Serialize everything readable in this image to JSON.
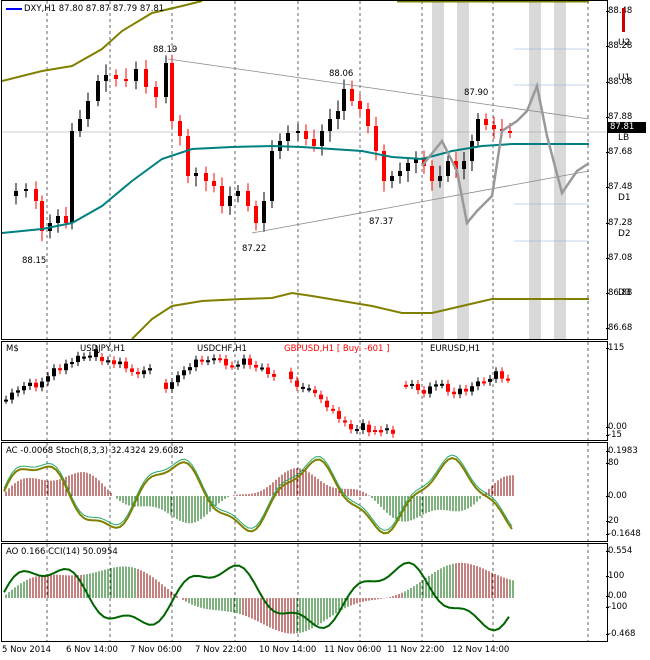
{
  "main": {
    "symbol": "DXY,H1",
    "ohlc": "87.80 87.87 87.79 87.81",
    "annotations": [
      "88.19",
      "88.06",
      "87.90",
      "87.37",
      "87.22",
      "88.15"
    ],
    "price_ticks": [
      "88.48",
      "88.28",
      "88.08",
      "87.88",
      "87.68",
      "87.48",
      "87.28",
      "87.08",
      "86.88",
      "86.68"
    ],
    "current_price": "87.81",
    "levels": [
      "U2",
      "U1",
      "LB",
      "D1",
      "D2",
      "D3"
    ]
  },
  "symbols_panel": {
    "label": "M$",
    "items": [
      "USDJPY,H1",
      "USDCHF,H1",
      "GBPUSD,H1 [ Buy: -601 ]",
      "EURUSD,H1"
    ],
    "ticks": [
      "115",
      "0.00",
      "-15"
    ]
  },
  "ac_panel": {
    "title": "AC -0.0068  Stoch(8,3,3) 32.4324 29.6082",
    "ticks": [
      "0.1983",
      "80",
      "0.00",
      "20",
      "-0.1648"
    ]
  },
  "ao_panel": {
    "title": "AO 0.166  CCI(14) 50.0954",
    "ticks": [
      "0.554",
      "100",
      "0.00",
      "-100",
      "-0.468"
    ]
  },
  "time_axis": [
    "5 Nov 2014",
    "6 Nov 14:00",
    "7 Nov 06:00",
    "7 Nov 22:00",
    "10 Nov 14:00",
    "11 Nov 06:00",
    "11 Nov 22:00",
    "12 Nov 14:00"
  ],
  "colors": {
    "bull": "#000000",
    "bear": "#ff0000",
    "ma": "#008080",
    "envelope": "#808000",
    "projection": "#999999",
    "histo_up": "#006400",
    "histo_down": "#8b0000"
  },
  "chart_data": {
    "type": "line",
    "title": "DXY,H1",
    "ylim": [
      86.6,
      88.55
    ],
    "swing_points": [
      {
        "label": "88.15",
        "value": 88.15
      },
      {
        "label": "88.19",
        "value": 88.19
      },
      {
        "label": "87.22",
        "value": 87.22
      },
      {
        "label": "88.06",
        "value": 88.06
      },
      {
        "label": "87.37",
        "value": 87.37
      },
      {
        "label": "87.90",
        "value": 87.9
      }
    ],
    "last_close": 87.81
  }
}
